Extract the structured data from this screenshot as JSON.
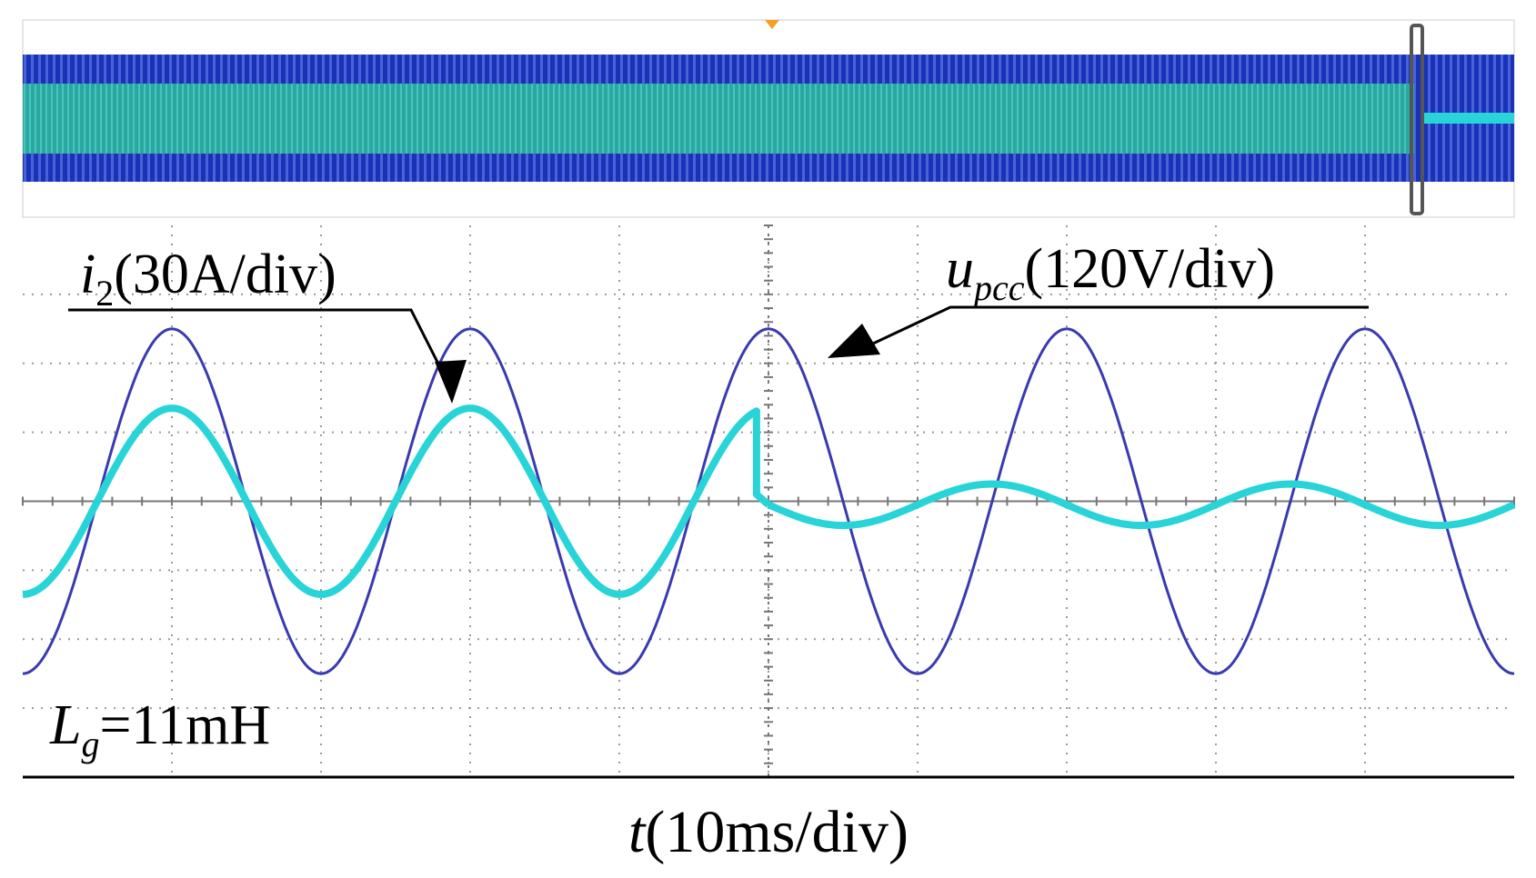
{
  "colors": {
    "voltage": "#3a3ab0",
    "current": "#28d4d8",
    "overview_band": "#1a32b8",
    "overview_core": "#2aa8a0",
    "grid": "#9a9a9a",
    "annotation": "#000000",
    "trigger_marker": "#f5a020"
  },
  "labels": {
    "current_sym": "i",
    "current_sub": "2",
    "current_scale": "(30A/div)",
    "voltage_sym": "u",
    "voltage_sub": "pcc",
    "voltage_scale": "(120V/div)",
    "inductance_sym": "L",
    "inductance_sub": "g",
    "inductance_value": "=11mH",
    "time_sym": "t",
    "time_scale": "(10ms/div)"
  },
  "chart_data": {
    "type": "line",
    "title": "",
    "xlabel": "t(10ms/div)",
    "ylabel": "",
    "grid": true,
    "x_divisions": 10,
    "y_divisions": 8,
    "xlim": [
      0,
      100
    ],
    "ylim": [
      -4,
      4
    ],
    "x_unit": "ms",
    "event_time": 50,
    "series": [
      {
        "name": "u_pcc (120V/div)",
        "scale": "120V/div",
        "waveform": "sine",
        "amplitude_div": 2.5,
        "period": 20,
        "offset_div": 0,
        "first_peak_at": 10
      },
      {
        "name": "i_2 (30A/div)",
        "scale": "30A/div",
        "waveform": "sine",
        "segments": [
          {
            "t_start": 0,
            "t_end": 49.2,
            "amplitude_div": 1.35,
            "offset_div": 0,
            "period": 20,
            "first_peak_at": 10
          },
          {
            "t_start": 50,
            "t_end": 100,
            "amplitude_div": 0.3,
            "offset_div": -0.05,
            "period": 20,
            "first_peak_at": 45
          }
        ]
      }
    ],
    "annotations": [
      {
        "text": "i2(30A/div)",
        "points_to": "i_2"
      },
      {
        "text": "upcc(120V/div)",
        "points_to": "u_pcc"
      },
      {
        "text": "Lg=11mH",
        "position": "bottom-left"
      }
    ]
  }
}
